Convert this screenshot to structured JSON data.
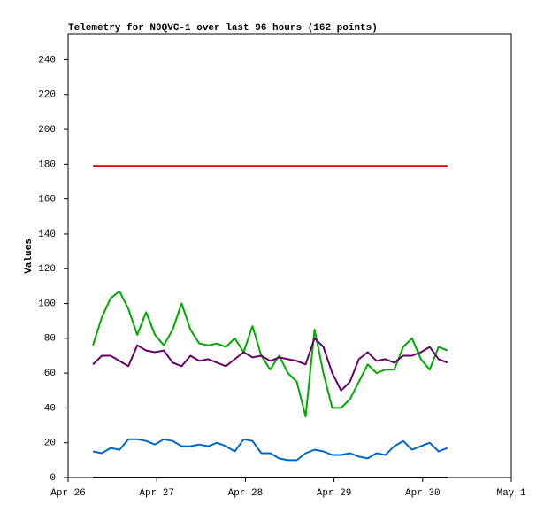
{
  "chart_data": {
    "type": "line",
    "title": "Telemetry for N0QVC-1 over last 96 hours (162 points)",
    "y_label": "Values",
    "x": [
      0.28,
      0.38,
      0.48,
      0.58,
      0.68,
      0.78,
      0.88,
      0.98,
      1.08,
      1.18,
      1.28,
      1.38,
      1.48,
      1.58,
      1.68,
      1.78,
      1.88,
      1.98,
      2.08,
      2.18,
      2.28,
      2.38,
      2.48,
      2.58,
      2.68,
      2.78,
      2.88,
      2.98,
      3.08,
      3.18,
      3.28,
      3.38,
      3.48,
      3.58,
      3.68,
      3.78,
      3.88,
      3.98,
      4.08,
      4.18,
      4.28
    ],
    "xlim": [
      0,
      5
    ],
    "xticks": [
      {
        "value": 0,
        "label": "Apr 26"
      },
      {
        "value": 1,
        "label": "Apr 27"
      },
      {
        "value": 2,
        "label": "Apr 28"
      },
      {
        "value": 3,
        "label": "Apr 29"
      },
      {
        "value": 4,
        "label": "Apr 30"
      },
      {
        "value": 5,
        "label": "May 1"
      }
    ],
    "ylim": [
      0,
      255
    ],
    "yticks": [
      0,
      20,
      40,
      60,
      80,
      100,
      120,
      140,
      160,
      180,
      200,
      220,
      240
    ],
    "series": [
      {
        "color": "#dd0000",
        "values": [
          179,
          179,
          179,
          179,
          179,
          179,
          179,
          179,
          179,
          179,
          179,
          179,
          179,
          179,
          179,
          179,
          179,
          179,
          179,
          179,
          179,
          179,
          179,
          179,
          179,
          179,
          179,
          179,
          179,
          179,
          179,
          179,
          179,
          179,
          179,
          179,
          179,
          179,
          179,
          179,
          179
        ]
      },
      {
        "color": "#000000",
        "values": [
          0,
          0,
          0,
          0,
          0,
          0,
          0,
          0,
          0,
          0,
          0,
          0,
          0,
          0,
          0,
          0,
          0,
          0,
          0,
          0,
          0,
          0,
          0,
          0,
          0,
          0,
          0,
          0,
          0,
          0,
          0,
          0,
          0,
          0,
          0,
          0,
          0,
          0,
          0,
          0,
          0
        ]
      },
      {
        "color": "#00aa00",
        "values": [
          76,
          92,
          103,
          107,
          97,
          82,
          95,
          82,
          76,
          85,
          100,
          85,
          77,
          76,
          77,
          75,
          80,
          72,
          87,
          70,
          62,
          70,
          60,
          55,
          35,
          85,
          60,
          40,
          40,
          45,
          55,
          65,
          60,
          62,
          62,
          75,
          80,
          68,
          62,
          75,
          73
        ]
      },
      {
        "color": "#660066",
        "values": [
          65,
          70,
          70,
          67,
          64,
          76,
          73,
          72,
          73,
          66,
          64,
          70,
          67,
          68,
          66,
          64,
          68,
          72,
          69,
          70,
          67,
          69,
          68,
          67,
          65,
          80,
          75,
          60,
          50,
          55,
          68,
          72,
          67,
          68,
          66,
          70,
          70,
          72,
          75,
          68,
          66
        ]
      },
      {
        "color": "#0066cc",
        "values": [
          15,
          14,
          17,
          16,
          22,
          22,
          21,
          19,
          22,
          21,
          18,
          18,
          19,
          18,
          20,
          18,
          15,
          22,
          21,
          14,
          14,
          11,
          10,
          10,
          14,
          16,
          15,
          13,
          13,
          14,
          12,
          11,
          14,
          13,
          18,
          21,
          16,
          18,
          20,
          15,
          17
        ]
      }
    ]
  }
}
